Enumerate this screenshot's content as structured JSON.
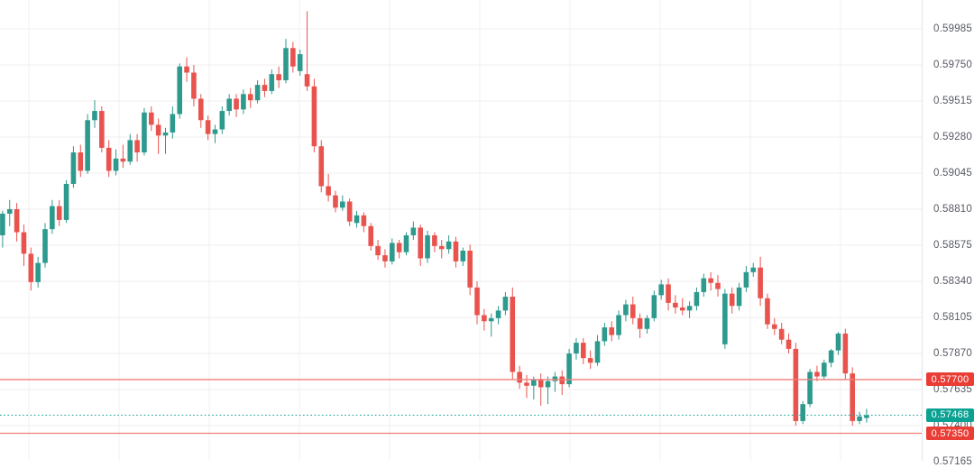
{
  "chart_data": {
    "type": "candlestick",
    "title": "",
    "grid": true,
    "legend_position": "none",
    "colors": {
      "background": "#ffffff",
      "up": "#2d9a8d",
      "down": "#e9534e",
      "grid_h": "#f2edef",
      "grid_v": "#f4eff1",
      "axis_border": "#e2e4ec",
      "axis_text": "#565a63",
      "level_line": "#ef7f78",
      "level_badge": "#e93d35",
      "last_price_line": "#2aa79b",
      "last_price_badge": "#0ba293"
    },
    "y_axis": {
      "top_price": 0.60173,
      "bottom_price": 0.57171,
      "tick_interval": 0.00235,
      "labels": [
        "0.59985",
        "0.59750",
        "0.59515",
        "0.59280",
        "0.59045",
        "0.58810",
        "0.58575",
        "0.58340",
        "0.58105",
        "0.57870",
        "0.57635",
        "0.57400",
        "0.57165"
      ]
    },
    "price_lines": [
      {
        "label": "0.57700",
        "price": 0.577,
        "style": "solid"
      },
      {
        "label": "0.57350",
        "price": 0.5735,
        "style": "solid"
      }
    ],
    "last_price": {
      "label": "0.57468",
      "price": 0.57468,
      "style": "dotted"
    },
    "candles": [
      [
        0.5864,
        0.588,
        0.5856,
        0.58781
      ],
      [
        0.58781,
        0.5887,
        0.587,
        0.5881
      ],
      [
        0.5881,
        0.5885,
        0.586,
        0.5866
      ],
      [
        0.5866,
        0.5871,
        0.5844,
        0.5852
      ],
      [
        0.5852,
        0.5856,
        0.5828,
        0.58335
      ],
      [
        0.58335,
        0.585,
        0.583,
        0.5846
      ],
      [
        0.5846,
        0.5872,
        0.5843,
        0.5868
      ],
      [
        0.5868,
        0.5887,
        0.5865,
        0.5883
      ],
      [
        0.5883,
        0.5887,
        0.587,
        0.5874
      ],
      [
        0.5874,
        0.59,
        0.5872,
        0.58975
      ],
      [
        0.58975,
        0.5922,
        0.5895,
        0.5918
      ],
      [
        0.5918,
        0.5923,
        0.5902,
        0.5906
      ],
      [
        0.5906,
        0.5943,
        0.5904,
        0.5939
      ],
      [
        0.5939,
        0.5952,
        0.5934,
        0.5945
      ],
      [
        0.5945,
        0.5948,
        0.5918,
        0.5921
      ],
      [
        0.5921,
        0.5926,
        0.5902,
        0.5906
      ],
      [
        0.5906,
        0.592,
        0.5903,
        0.5914
      ],
      [
        0.5914,
        0.5923,
        0.5908,
        0.5912
      ],
      [
        0.5912,
        0.593,
        0.591,
        0.5926
      ],
      [
        0.5926,
        0.593,
        0.5912,
        0.5918
      ],
      [
        0.5918,
        0.5947,
        0.5916,
        0.5944
      ],
      [
        0.5944,
        0.5948,
        0.5932,
        0.5936
      ],
      [
        0.5936,
        0.594,
        0.5917,
        0.5929
      ],
      [
        0.5929,
        0.5934,
        0.5917,
        0.5931
      ],
      [
        0.5931,
        0.5948,
        0.5927,
        0.5943
      ],
      [
        0.5943,
        0.5976,
        0.594,
        0.5974
      ],
      [
        0.5974,
        0.598,
        0.5964,
        0.597
      ],
      [
        0.597,
        0.5975,
        0.5948,
        0.5953
      ],
      [
        0.5953,
        0.5956,
        0.5934,
        0.5939
      ],
      [
        0.5939,
        0.5942,
        0.5926,
        0.593
      ],
      [
        0.593,
        0.5936,
        0.5924,
        0.5933
      ],
      [
        0.5933,
        0.5948,
        0.593,
        0.5945
      ],
      [
        0.5945,
        0.5956,
        0.5942,
        0.5953
      ],
      [
        0.5953,
        0.5956,
        0.5941,
        0.5946
      ],
      [
        0.5946,
        0.5959,
        0.5943,
        0.5956
      ],
      [
        0.5956,
        0.596,
        0.5947,
        0.5952
      ],
      [
        0.5952,
        0.5965,
        0.595,
        0.5962
      ],
      [
        0.5962,
        0.5966,
        0.5954,
        0.5958
      ],
      [
        0.5958,
        0.5972,
        0.5956,
        0.5969
      ],
      [
        0.5969,
        0.5974,
        0.596,
        0.5965
      ],
      [
        0.5965,
        0.5992,
        0.5963,
        0.5986
      ],
      [
        0.5986,
        0.599,
        0.597,
        0.5974
      ],
      [
        0.5971,
        0.5985,
        0.5968,
        0.5982
      ],
      [
        0.5969,
        0.601,
        0.5958,
        0.5961
      ],
      [
        0.5961,
        0.5966,
        0.5918,
        0.5922
      ],
      [
        0.5922,
        0.5926,
        0.5892,
        0.5896
      ],
      [
        0.5896,
        0.5904,
        0.5886,
        0.589
      ],
      [
        0.589,
        0.5893,
        0.5879,
        0.5882
      ],
      [
        0.5882,
        0.589,
        0.588,
        0.5886
      ],
      [
        0.5886,
        0.5888,
        0.587,
        0.5873
      ],
      [
        0.5872,
        0.588,
        0.5869,
        0.5877
      ],
      [
        0.5877,
        0.5879,
        0.5866,
        0.587
      ],
      [
        0.587,
        0.5872,
        0.5854,
        0.5857
      ],
      [
        0.5857,
        0.5861,
        0.5848,
        0.5851
      ],
      [
        0.5851,
        0.5855,
        0.5843,
        0.5847
      ],
      [
        0.5847,
        0.5862,
        0.5845,
        0.5859
      ],
      [
        0.5859,
        0.5861,
        0.5849,
        0.5853
      ],
      [
        0.5853,
        0.5866,
        0.5851,
        0.5864
      ],
      [
        0.5864,
        0.5873,
        0.5861,
        0.5869
      ],
      [
        0.5869,
        0.5871,
        0.5844,
        0.5849
      ],
      [
        0.5849,
        0.5867,
        0.5846,
        0.5864
      ],
      [
        0.5864,
        0.5866,
        0.5853,
        0.5857
      ],
      [
        0.5857,
        0.5861,
        0.5849,
        0.5855
      ],
      [
        0.5855,
        0.5864,
        0.5852,
        0.586
      ],
      [
        0.586,
        0.5863,
        0.5843,
        0.5847
      ],
      [
        0.5847,
        0.5856,
        0.5844,
        0.5854
      ],
      [
        0.5854,
        0.5858,
        0.5825,
        0.583
      ],
      [
        0.583,
        0.5834,
        0.5806,
        0.5812
      ],
      [
        0.5812,
        0.5816,
        0.5802,
        0.5808
      ],
      [
        0.5808,
        0.5813,
        0.5798,
        0.581
      ],
      [
        0.581,
        0.5818,
        0.5806,
        0.5815
      ],
      [
        0.5815,
        0.5827,
        0.5812,
        0.5824
      ],
      [
        0.5824,
        0.583,
        0.577,
        0.5775
      ],
      [
        0.5775,
        0.5779,
        0.5764,
        0.5768
      ],
      [
        0.5768,
        0.5773,
        0.5758,
        0.5766
      ],
      [
        0.5766,
        0.5772,
        0.5757,
        0.577
      ],
      [
        0.577,
        0.5774,
        0.5753,
        0.5765
      ],
      [
        0.5765,
        0.5772,
        0.5754,
        0.5769
      ],
      [
        0.5769,
        0.5775,
        0.5762,
        0.5772
      ],
      [
        0.5772,
        0.5776,
        0.576,
        0.5767
      ],
      [
        0.5767,
        0.579,
        0.5765,
        0.5787
      ],
      [
        0.5787,
        0.5797,
        0.5783,
        0.5794
      ],
      [
        0.5794,
        0.5797,
        0.578,
        0.5784
      ],
      [
        0.5784,
        0.5789,
        0.5777,
        0.5781
      ],
      [
        0.5781,
        0.5799,
        0.5779,
        0.5795
      ],
      [
        0.5795,
        0.5807,
        0.5792,
        0.5804
      ],
      [
        0.5804,
        0.5808,
        0.5795,
        0.5799
      ],
      [
        0.5799,
        0.5815,
        0.5796,
        0.5812
      ],
      [
        0.5812,
        0.5822,
        0.5808,
        0.5819
      ],
      [
        0.5819,
        0.5824,
        0.5806,
        0.581
      ],
      [
        0.581,
        0.5813,
        0.5797,
        0.5803
      ],
      [
        0.5803,
        0.5812,
        0.58,
        0.581
      ],
      [
        0.581,
        0.5828,
        0.5808,
        0.5825
      ],
      [
        0.5825,
        0.5835,
        0.5822,
        0.5832
      ],
      [
        0.5832,
        0.5836,
        0.5815,
        0.582
      ],
      [
        0.582,
        0.5825,
        0.5813,
        0.5817
      ],
      [
        0.5817,
        0.5823,
        0.5812,
        0.5815
      ],
      [
        0.5815,
        0.5821,
        0.581,
        0.5818
      ],
      [
        0.5818,
        0.583,
        0.5815,
        0.5827
      ],
      [
        0.5827,
        0.5839,
        0.5824,
        0.5836
      ],
      [
        0.5836,
        0.584,
        0.5828,
        0.5833
      ],
      [
        0.5833,
        0.5838,
        0.5824,
        0.5829
      ],
      [
        0.5793,
        0.5829,
        0.579,
        0.5826
      ],
      [
        0.5826,
        0.583,
        0.5813,
        0.5818
      ],
      [
        0.5818,
        0.5833,
        0.5815,
        0.583
      ],
      [
        0.583,
        0.5844,
        0.5827,
        0.584
      ],
      [
        0.584,
        0.5846,
        0.5837,
        0.5843
      ],
      [
        0.5843,
        0.585,
        0.5818,
        0.5823
      ],
      [
        0.5823,
        0.5826,
        0.5803,
        0.5806
      ],
      [
        0.5806,
        0.581,
        0.5799,
        0.5803
      ],
      [
        0.5803,
        0.5807,
        0.5793,
        0.5796
      ],
      [
        0.5796,
        0.58,
        0.5787,
        0.579
      ],
      [
        0.579,
        0.5794,
        0.574,
        0.5743
      ],
      [
        0.5743,
        0.5756,
        0.5741,
        0.5754
      ],
      [
        0.5754,
        0.5777,
        0.5752,
        0.5775
      ],
      [
        0.5775,
        0.5779,
        0.5769,
        0.5772
      ],
      [
        0.5772,
        0.5783,
        0.577,
        0.5781
      ],
      [
        0.5781,
        0.579,
        0.5778,
        0.5789
      ],
      [
        0.5789,
        0.5801,
        0.5786,
        0.58
      ],
      [
        0.58,
        0.5803,
        0.577,
        0.5774
      ],
      [
        0.5774,
        0.5778,
        0.574,
        0.5743
      ],
      [
        0.5743,
        0.5749,
        0.5741,
        0.5746
      ],
      [
        0.5745,
        0.5751,
        0.5742,
        0.57468
      ]
    ]
  }
}
